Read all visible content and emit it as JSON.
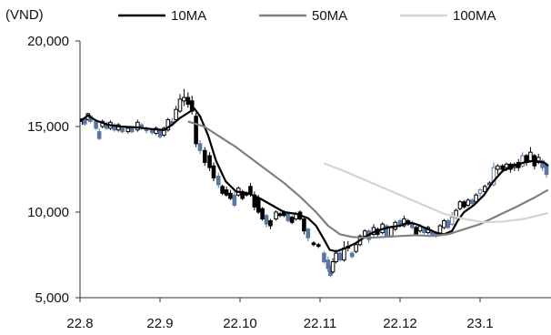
{
  "chart_data": {
    "type": "candlestick-line",
    "unit_label": "(VND)",
    "xlabel": "",
    "ylabel": "",
    "ylim": [
      5000,
      20000
    ],
    "y_ticks": [
      5000,
      10000,
      15000,
      20000
    ],
    "y_tick_labels": [
      "5,000",
      "10,000",
      "15,000",
      "20,000"
    ],
    "x_ticks": [
      "22.8",
      "22.9",
      "22.10",
      "22.11",
      "22.12",
      "23.1"
    ],
    "x_tick_months": [
      0,
      1,
      2,
      3,
      4,
      5
    ],
    "x_range_months": [
      0,
      5.85
    ],
    "grid": false,
    "legend_position": "top",
    "legend": [
      "10MA",
      "50MA",
      "100MA"
    ],
    "series": [
      {
        "name": "10MA",
        "color": "#000000",
        "points": [
          [
            0.0,
            15300
          ],
          [
            0.1,
            15650
          ],
          [
            0.2,
            15350
          ],
          [
            0.35,
            15100
          ],
          [
            0.5,
            15000
          ],
          [
            0.7,
            14950
          ],
          [
            0.9,
            14850
          ],
          [
            1.05,
            14800
          ],
          [
            1.15,
            15100
          ],
          [
            1.25,
            15500
          ],
          [
            1.35,
            15800
          ],
          [
            1.43,
            16050
          ],
          [
            1.5,
            15600
          ],
          [
            1.6,
            14500
          ],
          [
            1.7,
            13000
          ],
          [
            1.82,
            11800
          ],
          [
            1.95,
            11200
          ],
          [
            2.1,
            11100
          ],
          [
            2.25,
            10800
          ],
          [
            2.4,
            10400
          ],
          [
            2.55,
            10000
          ],
          [
            2.7,
            9900
          ],
          [
            2.85,
            9650
          ],
          [
            2.95,
            9200
          ],
          [
            3.05,
            8400
          ],
          [
            3.12,
            7800
          ],
          [
            3.2,
            7700
          ],
          [
            3.32,
            7900
          ],
          [
            3.45,
            8200
          ],
          [
            3.58,
            8600
          ],
          [
            3.7,
            8900
          ],
          [
            3.85,
            9100
          ],
          [
            4.0,
            9200
          ],
          [
            4.1,
            9400
          ],
          [
            4.2,
            9300
          ],
          [
            4.35,
            9000
          ],
          [
            4.45,
            8800
          ],
          [
            4.55,
            8700
          ],
          [
            4.65,
            8900
          ],
          [
            4.72,
            9500
          ],
          [
            4.8,
            10000
          ],
          [
            4.92,
            10400
          ],
          [
            5.05,
            11000
          ],
          [
            5.15,
            11700
          ],
          [
            5.28,
            12400
          ],
          [
            5.42,
            12700
          ],
          [
            5.55,
            12900
          ],
          [
            5.68,
            13000
          ],
          [
            5.8,
            12900
          ],
          [
            5.85,
            12700
          ]
        ]
      },
      {
        "name": "50MA",
        "color": "#808080",
        "points": [
          [
            1.35,
            15300
          ],
          [
            1.55,
            15000
          ],
          [
            1.75,
            14400
          ],
          [
            1.95,
            13800
          ],
          [
            2.15,
            13100
          ],
          [
            2.35,
            12400
          ],
          [
            2.55,
            11700
          ],
          [
            2.75,
            10900
          ],
          [
            2.95,
            10000
          ],
          [
            3.1,
            9200
          ],
          [
            3.25,
            8700
          ],
          [
            3.4,
            8550
          ],
          [
            3.6,
            8500
          ],
          [
            3.8,
            8550
          ],
          [
            4.0,
            8600
          ],
          [
            4.2,
            8650
          ],
          [
            4.4,
            8600
          ],
          [
            4.6,
            8700
          ],
          [
            4.8,
            9000
          ],
          [
            5.0,
            9300
          ],
          [
            5.2,
            9750
          ],
          [
            5.45,
            10300
          ],
          [
            5.7,
            10900
          ],
          [
            5.85,
            11300
          ]
        ]
      },
      {
        "name": "100MA",
        "color": "#d4d4d4",
        "points": [
          [
            3.05,
            12850
          ],
          [
            3.3,
            12400
          ],
          [
            3.55,
            11900
          ],
          [
            3.8,
            11400
          ],
          [
            4.05,
            10900
          ],
          [
            4.3,
            10400
          ],
          [
            4.55,
            9900
          ],
          [
            4.8,
            9600
          ],
          [
            5.05,
            9400
          ],
          [
            5.3,
            9450
          ],
          [
            5.55,
            9600
          ],
          [
            5.85,
            9950
          ]
        ]
      }
    ],
    "candles": [
      [
        0.03,
        15300,
        15450,
        15100,
        15500,
        "#000000"
      ],
      [
        0.06,
        15450,
        15150,
        15050,
        15600,
        "#5a77a3"
      ],
      [
        0.1,
        15400,
        15750,
        15350,
        15800,
        "#000000"
      ],
      [
        0.13,
        15600,
        15300,
        15200,
        15700,
        "#5a77a3"
      ],
      [
        0.2,
        15300,
        14900,
        14800,
        15400,
        "#5a77a3"
      ],
      [
        0.24,
        14700,
        14300,
        14200,
        14900,
        "#5a77a3"
      ],
      [
        0.28,
        15000,
        15300,
        14900,
        15400,
        "#000000"
      ],
      [
        0.33,
        15200,
        14900,
        14800,
        15300,
        "#5a77a3"
      ],
      [
        0.38,
        14900,
        15250,
        14800,
        15350,
        "#000000"
      ],
      [
        0.43,
        15100,
        14800,
        14700,
        15200,
        "#5a77a3"
      ],
      [
        0.48,
        14800,
        15100,
        14700,
        15200,
        "#000000"
      ],
      [
        0.53,
        14900,
        14700,
        14600,
        15000,
        "#5a77a3"
      ],
      [
        0.6,
        14700,
        14900,
        14600,
        15000,
        "#000000"
      ],
      [
        0.65,
        14900,
        14700,
        14600,
        15000,
        "#5a77a3"
      ],
      [
        0.72,
        14800,
        15250,
        14700,
        15400,
        "#000000"
      ],
      [
        0.77,
        15100,
        14900,
        14800,
        15200,
        "#5a77a3"
      ],
      [
        0.83,
        14900,
        14750,
        14600,
        15000,
        "#5a77a3"
      ],
      [
        0.9,
        14800,
        14650,
        14500,
        14900,
        "#5a77a3"
      ],
      [
        0.95,
        14600,
        14900,
        14500,
        15000,
        "#000000"
      ],
      [
        1.0,
        14800,
        14400,
        14300,
        14900,
        "#5a77a3"
      ],
      [
        1.05,
        14500,
        14900,
        14400,
        15000,
        "#000000"
      ],
      [
        1.1,
        14800,
        15400,
        14700,
        15500,
        "#000000"
      ],
      [
        1.15,
        15300,
        15100,
        15000,
        15500,
        "#5a77a3"
      ],
      [
        1.2,
        15400,
        16000,
        15300,
        16200,
        "#000000"
      ],
      [
        1.25,
        15900,
        16600,
        15800,
        16900,
        "#000000"
      ],
      [
        1.3,
        16500,
        16700,
        16200,
        17200,
        "#000000"
      ],
      [
        1.35,
        16700,
        16300,
        16100,
        17000,
        "#000000"
      ],
      [
        1.4,
        16500,
        15900,
        15700,
        16800,
        "#000000"
      ],
      [
        1.45,
        15600,
        14000,
        13800,
        15800,
        "#000000"
      ],
      [
        1.5,
        14000,
        13600,
        13400,
        14200,
        "#5a77a3"
      ],
      [
        1.56,
        13600,
        12900,
        12700,
        13800,
        "#000000"
      ],
      [
        1.62,
        13300,
        12600,
        12400,
        13500,
        "#000000"
      ],
      [
        1.67,
        12700,
        12000,
        11800,
        12900,
        "#000000"
      ],
      [
        1.73,
        12100,
        11600,
        11400,
        12300,
        "#5a77a3"
      ],
      [
        1.78,
        11500,
        11100,
        11000,
        11600,
        "#000000"
      ],
      [
        1.83,
        11300,
        11000,
        10900,
        11500,
        "#000000"
      ],
      [
        1.88,
        11100,
        10800,
        10700,
        11300,
        "#000000"
      ],
      [
        1.93,
        11000,
        10400,
        10300,
        11200,
        "#5a77a3"
      ],
      [
        1.98,
        11000,
        11400,
        10900,
        11500,
        "#000000"
      ],
      [
        2.03,
        11200,
        10800,
        10700,
        11300,
        "#000000"
      ],
      [
        2.08,
        11100,
        11000,
        10900,
        11200,
        "#000000"
      ],
      [
        2.13,
        11500,
        11100,
        10900,
        11700,
        "#000000"
      ],
      [
        2.18,
        11000,
        10300,
        10100,
        11200,
        "#000000"
      ],
      [
        2.23,
        10800,
        10000,
        9900,
        11000,
        "#000000"
      ],
      [
        2.28,
        10200,
        9600,
        9500,
        10300,
        "#000000"
      ],
      [
        2.33,
        9800,
        9300,
        9100,
        9900,
        "#5a77a3"
      ],
      [
        2.38,
        9500,
        9200,
        9000,
        9600,
        "#000000"
      ],
      [
        2.45,
        9600,
        10000,
        9500,
        10100,
        "#000000"
      ],
      [
        2.5,
        9900,
        9800,
        9700,
        10000,
        "#000000"
      ],
      [
        2.55,
        10000,
        9800,
        9700,
        10100,
        "#000000"
      ],
      [
        2.6,
        9900,
        9500,
        9400,
        10000,
        "#5a77a3"
      ],
      [
        2.65,
        9700,
        9400,
        9300,
        9800,
        "#000000"
      ],
      [
        2.7,
        9600,
        9900,
        9500,
        10000,
        "#000000"
      ],
      [
        2.75,
        10000,
        9600,
        9500,
        10100,
        "#000000"
      ],
      [
        2.8,
        9600,
        8900,
        8700,
        9700,
        "#000000"
      ],
      [
        2.85,
        9000,
        8500,
        8300,
        9100,
        "#5a77a3"
      ],
      [
        2.92,
        8200,
        8100,
        8000,
        8300,
        "#000000"
      ],
      [
        2.98,
        8100,
        8000,
        7900,
        8200,
        "#000000"
      ],
      [
        3.05,
        7600,
        7100,
        7000,
        7700,
        "#5a77a3"
      ],
      [
        3.1,
        7200,
        6700,
        6500,
        7400,
        "#5a77a3"
      ],
      [
        3.13,
        6700,
        6300,
        6200,
        6900,
        "#5a77a3"
      ],
      [
        3.16,
        6500,
        7100,
        6400,
        7300,
        "#000000"
      ],
      [
        3.2,
        7100,
        7600,
        7000,
        7800,
        "#000000"
      ],
      [
        3.25,
        7600,
        7200,
        7100,
        7700,
        "#5a77a3"
      ],
      [
        3.3,
        7200,
        7900,
        7100,
        8300,
        "#000000"
      ],
      [
        3.35,
        7900,
        8000,
        7700,
        8300,
        "#000000"
      ],
      [
        3.4,
        7600,
        7400,
        7300,
        7700,
        "#5a77a3"
      ],
      [
        3.45,
        7700,
        8100,
        7600,
        8200,
        "#000000"
      ],
      [
        3.5,
        8100,
        8600,
        8000,
        8700,
        "#000000"
      ],
      [
        3.56,
        8600,
        8900,
        8500,
        9000,
        "#000000"
      ],
      [
        3.61,
        8900,
        8400,
        8200,
        9000,
        "#5a77a3"
      ],
      [
        3.67,
        8700,
        9100,
        8600,
        9300,
        "#000000"
      ],
      [
        3.72,
        9000,
        8700,
        8600,
        9100,
        "#000000"
      ],
      [
        3.78,
        8800,
        9300,
        8700,
        9400,
        "#000000"
      ],
      [
        3.83,
        9200,
        8600,
        8500,
        9300,
        "#5a77a3"
      ],
      [
        3.89,
        8600,
        9100,
        8500,
        9200,
        "#000000"
      ],
      [
        3.94,
        9000,
        9400,
        8900,
        9500,
        "#000000"
      ],
      [
        4.0,
        9500,
        9200,
        9100,
        9600,
        "#5a77a3"
      ],
      [
        4.05,
        9200,
        9600,
        9100,
        9800,
        "#000000"
      ],
      [
        4.1,
        9500,
        9300,
        9200,
        9600,
        "#000000"
      ],
      [
        4.15,
        9400,
        9100,
        9000,
        9500,
        "#5a77a3"
      ],
      [
        4.2,
        9100,
        8700,
        8600,
        9200,
        "#000000"
      ],
      [
        4.25,
        8900,
        9200,
        8800,
        9300,
        "#000000"
      ],
      [
        4.3,
        9000,
        8800,
        8700,
        9100,
        "#5a77a3"
      ],
      [
        4.35,
        8800,
        9100,
        8700,
        9200,
        "#000000"
      ],
      [
        4.4,
        8900,
        8700,
        8600,
        9000,
        "#5a77a3"
      ],
      [
        4.45,
        8800,
        8600,
        8500,
        8900,
        "#5a77a3"
      ],
      [
        4.5,
        8700,
        9200,
        8600,
        9300,
        "#000000"
      ],
      [
        4.55,
        9100,
        9500,
        9000,
        9600,
        "#000000"
      ],
      [
        4.6,
        9500,
        9100,
        9000,
        9600,
        "#5a77a3"
      ],
      [
        4.65,
        9300,
        9700,
        9200,
        10000,
        "#5a77a3"
      ],
      [
        4.7,
        9700,
        10100,
        9600,
        10200,
        "#000000"
      ],
      [
        4.75,
        10200,
        10600,
        10100,
        10700,
        "#000000"
      ],
      [
        4.8,
        10600,
        10300,
        10200,
        10700,
        "#000000"
      ],
      [
        4.85,
        10400,
        10700,
        10300,
        10800,
        "#000000"
      ],
      [
        4.9,
        10700,
        10500,
        10400,
        10800,
        "#5a77a3"
      ],
      [
        4.95,
        10600,
        11000,
        10500,
        11100,
        "#000000"
      ],
      [
        5.0,
        11100,
        11300,
        10900,
        11400,
        "#5a77a3"
      ],
      [
        5.06,
        11200,
        11500,
        11000,
        11600,
        "#000000"
      ],
      [
        5.12,
        11600,
        11700,
        11500,
        11800,
        "#000000"
      ],
      [
        5.17,
        11600,
        12600,
        11500,
        12900,
        "#5a77a3"
      ],
      [
        5.22,
        12500,
        12700,
        12200,
        12800,
        "#000000"
      ],
      [
        5.28,
        12700,
        12500,
        12300,
        12800,
        "#000000"
      ],
      [
        5.33,
        12600,
        12800,
        12400,
        12900,
        "#000000"
      ],
      [
        5.38,
        12800,
        12500,
        12300,
        12900,
        "#000000"
      ],
      [
        5.43,
        12600,
        12800,
        12400,
        12900,
        "#000000"
      ],
      [
        5.48,
        12900,
        12600,
        12400,
        13100,
        "#000000"
      ],
      [
        5.53,
        12700,
        13300,
        12600,
        13500,
        "#5a77a3"
      ],
      [
        5.58,
        13300,
        12900,
        12700,
        13400,
        "#000000"
      ],
      [
        5.63,
        13000,
        13500,
        12900,
        13800,
        "#000000"
      ],
      [
        5.68,
        13300,
        12700,
        12500,
        13400,
        "#000000"
      ],
      [
        5.73,
        12900,
        13200,
        12800,
        13400,
        "#000000"
      ],
      [
        5.78,
        13000,
        12600,
        12400,
        13100,
        "#5a77a3"
      ],
      [
        5.83,
        12800,
        12200,
        12000,
        12900,
        "#5a77a3"
      ]
    ]
  }
}
